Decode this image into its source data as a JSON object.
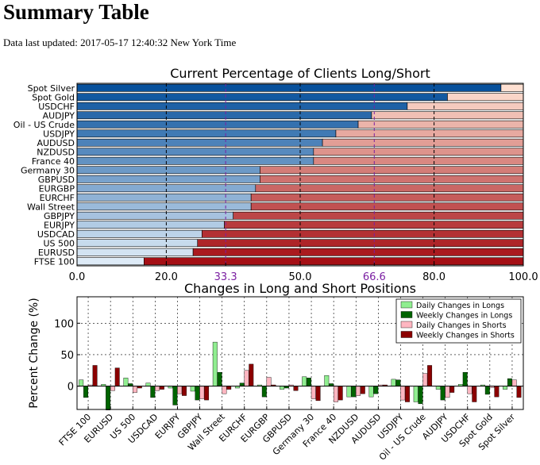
{
  "page": {
    "title": "Summary Table",
    "updated_label": "Data last updated: 2017-05-17 12:40:32 New York Time"
  },
  "colors": {
    "long_dark": "#08519c",
    "long_light": "#deebf7",
    "short_dark": "#a50f15",
    "short_light": "#fee0d2",
    "marker": "#7b1fa2",
    "daily_long": "#90ee90",
    "weekly_long": "#006400",
    "daily_short": "#ffb6c1",
    "weekly_short": "#8b0000"
  },
  "chart_data": [
    {
      "type": "bar",
      "orientation": "horizontal",
      "stacked": true,
      "title": "Current Percentage of Clients Long/Short",
      "xlim": [
        0,
        100
      ],
      "xticks": [
        "0.0",
        "20.0",
        "33.3",
        "50.0",
        "66.6",
        "80.0",
        "100.0"
      ],
      "xtick_values": [
        0,
        20,
        33.3,
        50,
        66.6,
        80,
        100
      ],
      "highlight_ticks": [
        "33.3",
        "66.6"
      ],
      "categories": [
        "Spot Silver",
        "Spot Gold",
        "USDCHF",
        "AUDJPY",
        "Oil - US Crude",
        "USDJPY",
        "AUDUSD",
        "NZDUSD",
        "France 40",
        "Germany 30",
        "GBPUSD",
        "EURGBP",
        "EURCHF",
        "Wall Street",
        "GBPJPY",
        "EURJPY",
        "USDCAD",
        "US 500",
        "EURUSD",
        "FTSE 100"
      ],
      "series": [
        {
          "name": "Long",
          "values": [
            95,
            83,
            74,
            66,
            63,
            58,
            55,
            53,
            53,
            41,
            41,
            40,
            39,
            39,
            35,
            33,
            28,
            27,
            26,
            15
          ]
        },
        {
          "name": "Short",
          "values": [
            5,
            17,
            26,
            34,
            37,
            42,
            45,
            47,
            47,
            59,
            59,
            60,
            61,
            61,
            65,
            67,
            72,
            73,
            74,
            85
          ]
        }
      ]
    },
    {
      "type": "bar",
      "title": "Changes in Long and Short Positions",
      "ylabel": "Percent Change (%)",
      "ylim": [
        -37,
        142
      ],
      "yticks": [
        "0",
        "50",
        "100"
      ],
      "ytick_values": [
        0,
        50,
        100
      ],
      "categories": [
        "FTSE 100",
        "EURUSD",
        "US 500",
        "USDCAD",
        "EURJPY",
        "GBPJPY",
        "Wall Street",
        "EURCHF",
        "EURGBP",
        "GBPUSD",
        "Germany 30",
        "France 40",
        "NZDUSD",
        "AUDUSD",
        "USDJPY",
        "Oil - US Crude",
        "AUDJPY",
        "USDCHF",
        "Spot Gold",
        "Spot Silver"
      ],
      "series": [
        {
          "name": "Daily Changes in Longs",
          "values": [
            10,
            3,
            13,
            5,
            -3,
            -8,
            70,
            -3,
            2,
            -5,
            15,
            17,
            -17,
            -17,
            11,
            -25,
            -5,
            3,
            2,
            -5
          ]
        },
        {
          "name": "Weekly Changes in Longs",
          "values": [
            -18,
            -38,
            4,
            -18,
            -30,
            -22,
            22,
            5,
            -17,
            -3,
            13,
            4,
            -17,
            -12,
            10,
            -28,
            -22,
            22,
            -13,
            12
          ]
        },
        {
          "name": "Daily Changes in Shorts",
          "values": [
            2,
            -7,
            -10,
            -7,
            -12,
            -20,
            -12,
            25,
            14,
            2,
            -20,
            -25,
            -15,
            2,
            -22,
            20,
            -18,
            -12,
            -2,
            10
          ]
        },
        {
          "name": "Weekly Changes in Shorts",
          "values": [
            33,
            29,
            -3,
            -5,
            -15,
            -22,
            -5,
            35,
            2,
            -7,
            -23,
            -22,
            -12,
            2,
            -25,
            33,
            -10,
            -25,
            -17,
            -18
          ]
        }
      ]
    }
  ]
}
